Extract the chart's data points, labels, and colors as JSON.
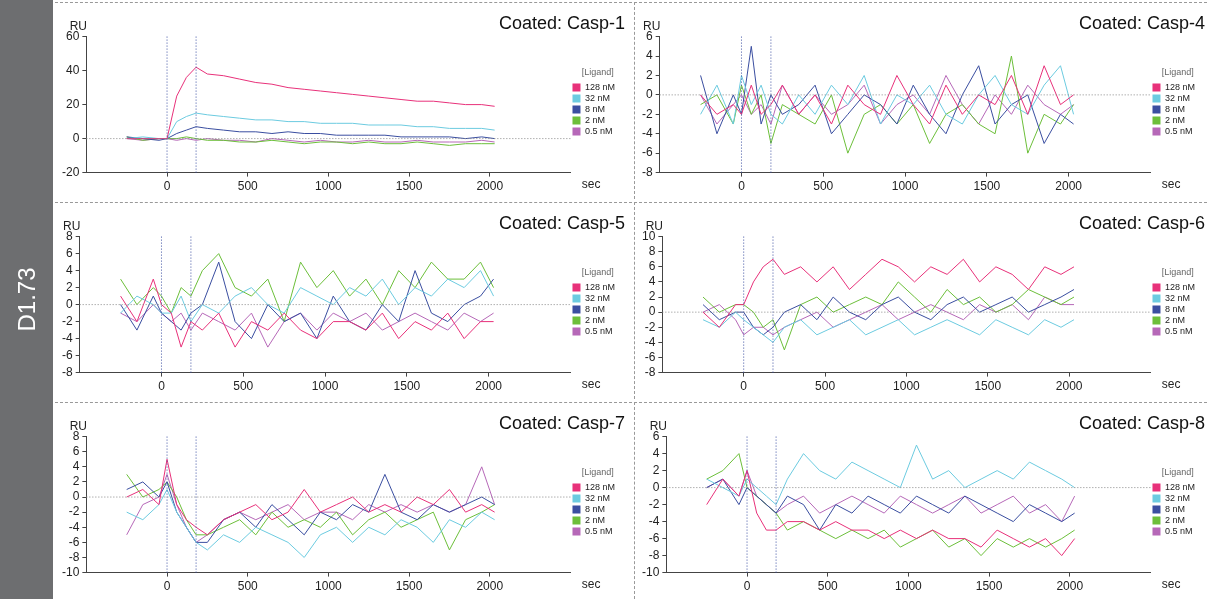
{
  "chart_data": [
    {
      "type": "line",
      "title": "Coated: Casp-1",
      "xlabel": "sec",
      "ylabel": "RU",
      "legend_title": "[Ligand]",
      "legend": "right",
      "marker": "none",
      "line_style": "solid",
      "grid": false,
      "annotations": [
        "D1.73"
      ],
      "xlim": [
        -500,
        2500
      ],
      "xticks": [
        0,
        500,
        1000,
        1500,
        2000
      ],
      "ylim": [
        -20,
        60
      ],
      "yticks": [
        -20,
        0,
        20,
        40,
        60
      ],
      "ref_lines": [
        {
          "axis": "x",
          "value": 0,
          "color": "#3a4ea0",
          "line_style": "dotted"
        },
        {
          "axis": "x",
          "value": 180,
          "color": "#3a4ea0",
          "line_style": "dotted"
        },
        {
          "axis": "y",
          "value": 0,
          "color": "#888888",
          "line_style": "dotted"
        }
      ],
      "x": [
        -250,
        -150,
        -50,
        0,
        60,
        120,
        180,
        250,
        350,
        450,
        550,
        650,
        750,
        850,
        950,
        1050,
        1150,
        1250,
        1350,
        1450,
        1550,
        1650,
        1750,
        1850,
        1950,
        2030
      ],
      "series": [
        {
          "name": "128 nM",
          "color": "#e8317a",
          "values": [
            0,
            0,
            0,
            0,
            25,
            36,
            42,
            38,
            37,
            35,
            33,
            32,
            30,
            29,
            28,
            27,
            26,
            25,
            24,
            23,
            22,
            22,
            21,
            20,
            20,
            19
          ]
        },
        {
          "name": "32 nM",
          "color": "#6ccbe0",
          "values": [
            0,
            1,
            0,
            0,
            10,
            13,
            15,
            14,
            13,
            12,
            11,
            11,
            10,
            10,
            9,
            9,
            9,
            8,
            8,
            8,
            7,
            7,
            6,
            6,
            6,
            5
          ]
        },
        {
          "name": "8 nM",
          "color": "#3a4ea0",
          "values": [
            1,
            0,
            -1,
            0,
            3,
            5,
            7,
            6,
            5,
            4,
            4,
            3,
            4,
            3,
            3,
            2,
            2,
            2,
            2,
            1,
            1,
            1,
            1,
            0,
            1,
            0
          ]
        },
        {
          "name": "2 nM",
          "color": "#6cbf3a",
          "values": [
            1,
            -1,
            0,
            0,
            0,
            1,
            0,
            -1,
            -1,
            -2,
            -2,
            -1,
            -2,
            -3,
            -2,
            -2,
            -3,
            -2,
            -3,
            -3,
            -2,
            -3,
            -4,
            -3,
            -3,
            -3
          ]
        },
        {
          "name": "0.5 nM",
          "color": "#b668b8",
          "values": [
            0,
            -1,
            0,
            0,
            -1,
            0,
            -1,
            0,
            -1,
            -1,
            -2,
            0,
            -1,
            -2,
            -1,
            -2,
            -2,
            -1,
            -2,
            -2,
            -1,
            -2,
            -2,
            -2,
            -1,
            -2
          ]
        }
      ]
    },
    {
      "type": "line",
      "title": "Coated: Casp-4",
      "xlabel": "sec",
      "ylabel": "RU",
      "legend_title": "[Ligand]",
      "legend": "right",
      "marker": "none",
      "line_style": "solid",
      "grid": false,
      "xlim": [
        -500,
        2500
      ],
      "xticks": [
        0,
        500,
        1000,
        1500,
        2000
      ],
      "ylim": [
        -8,
        6
      ],
      "yticks": [
        -8,
        -6,
        -4,
        -2,
        0,
        2,
        4,
        6
      ],
      "ref_lines": [
        {
          "axis": "x",
          "value": 0,
          "color": "#3a4ea0",
          "line_style": "dotted"
        },
        {
          "axis": "x",
          "value": 180,
          "color": "#3a4ea0",
          "line_style": "dotted"
        },
        {
          "axis": "y",
          "value": 0,
          "color": "#888888",
          "line_style": "dotted"
        }
      ],
      "x": [
        -250,
        -150,
        -50,
        0,
        60,
        120,
        180,
        250,
        350,
        450,
        550,
        650,
        750,
        850,
        950,
        1050,
        1150,
        1250,
        1350,
        1450,
        1550,
        1650,
        1750,
        1850,
        1950,
        2030
      ],
      "series": [
        {
          "name": "128 nM",
          "color": "#e8317a",
          "values": [
            0,
            -2,
            -1,
            -2,
            1,
            -2,
            -1,
            1,
            -2,
            0,
            -3,
            1,
            -1,
            -2,
            2,
            -1,
            -3,
            1,
            -2,
            0,
            -1,
            2,
            -2,
            3,
            -1,
            0
          ]
        },
        {
          "name": "32 nM",
          "color": "#6ccbe0",
          "values": [
            -2,
            1,
            -3,
            2,
            -1,
            1,
            -2,
            -3,
            0,
            -2,
            1,
            -1,
            2,
            -3,
            0,
            -1,
            1,
            -2,
            -3,
            0,
            2,
            -1,
            -2,
            1,
            3,
            -2
          ]
        },
        {
          "name": "8 nM",
          "color": "#3a4ea0",
          "values": [
            2,
            -4,
            0,
            -2,
            5,
            -3,
            0,
            -2,
            -1,
            1,
            -4,
            -2,
            0,
            -1,
            -3,
            1,
            -2,
            -4,
            0,
            3,
            -3,
            -1,
            0,
            -5,
            -2,
            -3
          ]
        },
        {
          "name": "2 nM",
          "color": "#6cbf3a",
          "values": [
            -1,
            0,
            -3,
            1,
            -2,
            0,
            -5,
            -1,
            -2,
            -3,
            0,
            -6,
            -2,
            -1,
            -3,
            -1,
            -5,
            -2,
            -1,
            -3,
            -4,
            4,
            -6,
            -2,
            -3,
            -1
          ]
        },
        {
          "name": "0.5 nM",
          "color": "#b668b8",
          "values": [
            0,
            -3,
            -1,
            0,
            -2,
            -1,
            -3,
            1,
            -2,
            0,
            -2,
            -1,
            1,
            -3,
            -1,
            0,
            -2,
            2,
            -1,
            -3,
            0,
            -2,
            1,
            -1,
            -2,
            -1
          ]
        }
      ]
    },
    {
      "type": "line",
      "title": "Coated: Casp-5",
      "xlabel": "sec",
      "ylabel": "RU",
      "legend_title": "[Ligand]",
      "legend": "right",
      "marker": "none",
      "line_style": "solid",
      "grid": false,
      "xlim": [
        -500,
        2500
      ],
      "xticks": [
        0,
        500,
        1000,
        1500,
        2000
      ],
      "ylim": [
        -8,
        8
      ],
      "yticks": [
        -8,
        -6,
        -4,
        -2,
        0,
        2,
        4,
        6,
        8
      ],
      "ref_lines": [
        {
          "axis": "x",
          "value": 0,
          "color": "#3a4ea0",
          "line_style": "dotted"
        },
        {
          "axis": "x",
          "value": 180,
          "color": "#3a4ea0",
          "line_style": "dotted"
        },
        {
          "axis": "y",
          "value": 0,
          "color": "#888888",
          "line_style": "dotted"
        }
      ],
      "x": [
        -250,
        -150,
        -50,
        0,
        60,
        120,
        180,
        250,
        350,
        450,
        550,
        650,
        750,
        850,
        950,
        1050,
        1150,
        1250,
        1350,
        1450,
        1550,
        1650,
        1750,
        1850,
        1950,
        2030
      ],
      "series": [
        {
          "name": "128 nM",
          "color": "#e8317a",
          "values": [
            1,
            -2,
            3,
            0,
            -1,
            -5,
            -2,
            -3,
            -1,
            -5,
            -2,
            -3,
            -1,
            -3,
            -4,
            -2,
            -2,
            -3,
            -1,
            -4,
            -2,
            -3,
            -1,
            -4,
            -2,
            -2
          ]
        },
        {
          "name": "32 nM",
          "color": "#6ccbe0",
          "values": [
            -1,
            1,
            0,
            -1,
            -1,
            1,
            -2,
            0,
            -1,
            1,
            2,
            0,
            -1,
            2,
            1,
            0,
            2,
            1,
            3,
            0,
            2,
            1,
            3,
            2,
            4,
            1
          ]
        },
        {
          "name": "8 nM",
          "color": "#3a4ea0",
          "values": [
            0,
            -3,
            1,
            -1,
            -2,
            -3,
            -1,
            0,
            5,
            -2,
            -4,
            0,
            -2,
            -1,
            -4,
            1,
            -2,
            -3,
            0,
            -2,
            4,
            -1,
            -2,
            0,
            1,
            3
          ]
        },
        {
          "name": "2 nM",
          "color": "#6cbf3a",
          "values": [
            3,
            0,
            2,
            1,
            -1,
            2,
            1,
            4,
            6,
            2,
            1,
            3,
            -2,
            5,
            2,
            4,
            1,
            3,
            0,
            4,
            2,
            5,
            3,
            3,
            5,
            2
          ]
        },
        {
          "name": "0.5 nM",
          "color": "#b668b8",
          "values": [
            -1,
            -2,
            0,
            -1,
            -2,
            -1,
            -3,
            -1,
            -2,
            -3,
            -1,
            -5,
            -2,
            -1,
            -3,
            -1,
            -2,
            -1,
            -3,
            -2,
            -1,
            -2,
            -3,
            -1,
            -2,
            -1
          ]
        }
      ]
    },
    {
      "type": "line",
      "title": "Coated: Casp-6",
      "xlabel": "sec",
      "ylabel": "RU",
      "legend_title": "[Ligand]",
      "legend": "right",
      "marker": "none",
      "line_style": "solid",
      "grid": false,
      "xlim": [
        -500,
        2500
      ],
      "xticks": [
        0,
        500,
        1000,
        1500,
        2000
      ],
      "ylim": [
        -8,
        10
      ],
      "yticks": [
        -8,
        -6,
        -4,
        -2,
        0,
        2,
        4,
        6,
        8,
        10
      ],
      "ref_lines": [
        {
          "axis": "x",
          "value": 0,
          "color": "#3a4ea0",
          "line_style": "dotted"
        },
        {
          "axis": "x",
          "value": 180,
          "color": "#3a4ea0",
          "line_style": "dotted"
        },
        {
          "axis": "y",
          "value": 0,
          "color": "#888888",
          "line_style": "dotted"
        }
      ],
      "x": [
        -250,
        -150,
        -50,
        0,
        60,
        120,
        180,
        250,
        350,
        450,
        550,
        650,
        750,
        850,
        950,
        1050,
        1150,
        1250,
        1350,
        1450,
        1550,
        1650,
        1750,
        1850,
        1950,
        2030
      ],
      "series": [
        {
          "name": "128 nM",
          "color": "#e8317a",
          "values": [
            0,
            -2,
            1,
            1,
            4,
            6,
            7,
            5,
            6,
            4,
            6,
            3,
            5,
            7,
            6,
            4,
            6,
            5,
            7,
            4,
            6,
            5,
            3,
            6,
            5,
            6
          ]
        },
        {
          "name": "32 nM",
          "color": "#6ccbe0",
          "values": [
            -1,
            -2,
            0,
            -1,
            -2,
            -3,
            -4,
            -2,
            -1,
            -3,
            -2,
            -1,
            -3,
            -2,
            -1,
            -3,
            -2,
            -1,
            -2,
            -3,
            -1,
            -2,
            -3,
            -1,
            -2,
            -1
          ]
        },
        {
          "name": "8 nM",
          "color": "#3a4ea0",
          "values": [
            1,
            -1,
            0,
            0,
            -2,
            -3,
            -2,
            0,
            1,
            -1,
            2,
            0,
            -1,
            1,
            2,
            0,
            -1,
            1,
            2,
            0,
            1,
            2,
            0,
            1,
            2,
            3
          ]
        },
        {
          "name": "2 nM",
          "color": "#6cbf3a",
          "values": [
            2,
            0,
            1,
            1,
            0,
            -2,
            -1,
            -5,
            1,
            2,
            0,
            1,
            2,
            1,
            4,
            2,
            0,
            3,
            1,
            2,
            0,
            1,
            3,
            2,
            1,
            2
          ]
        },
        {
          "name": "0.5 nM",
          "color": "#b668b8",
          "values": [
            0,
            1,
            -1,
            -3,
            -2,
            -2,
            -3,
            -2,
            -1,
            0,
            -2,
            -1,
            0,
            1,
            -1,
            0,
            1,
            0,
            -1,
            1,
            0,
            1,
            -1,
            2,
            1,
            1
          ]
        }
      ]
    },
    {
      "type": "line",
      "title": "Coated: Casp-7",
      "xlabel": "sec",
      "ylabel": "RU",
      "legend_title": "[Ligand]",
      "legend": "right",
      "marker": "none",
      "line_style": "solid",
      "grid": false,
      "xlim": [
        -500,
        2500
      ],
      "xticks": [
        0,
        500,
        1000,
        1500,
        2000
      ],
      "ylim": [
        -10,
        8
      ],
      "yticks": [
        -10,
        -8,
        -6,
        -4,
        -2,
        0,
        2,
        4,
        6,
        8
      ],
      "ref_lines": [
        {
          "axis": "x",
          "value": 0,
          "color": "#3a4ea0",
          "line_style": "dotted"
        },
        {
          "axis": "x",
          "value": 180,
          "color": "#3a4ea0",
          "line_style": "dotted"
        },
        {
          "axis": "y",
          "value": 0,
          "color": "#888888",
          "line_style": "dotted"
        }
      ],
      "x": [
        -250,
        -150,
        -50,
        0,
        60,
        120,
        180,
        250,
        350,
        450,
        550,
        650,
        750,
        850,
        950,
        1050,
        1150,
        1250,
        1350,
        1450,
        1550,
        1650,
        1750,
        1850,
        1950,
        2030
      ],
      "series": [
        {
          "name": "128 nM",
          "color": "#e8317a",
          "values": [
            0,
            1,
            -1,
            5,
            -1,
            -3,
            -4,
            -5,
            -3,
            -2,
            -1,
            -3,
            -2,
            1,
            -2,
            -1,
            0,
            -2,
            -1,
            -2,
            0,
            -1,
            1,
            -2,
            -1,
            -2
          ]
        },
        {
          "name": "32 nM",
          "color": "#6ccbe0",
          "values": [
            -2,
            -3,
            -1,
            1,
            -2,
            -4,
            -6,
            -7,
            -5,
            -6,
            -4,
            -5,
            -6,
            -8,
            -5,
            -4,
            -6,
            -4,
            -5,
            -3,
            -4,
            -6,
            -3,
            -4,
            -2,
            -3
          ]
        },
        {
          "name": "8 nM",
          "color": "#3a4ea0",
          "values": [
            1,
            2,
            0,
            2,
            -2,
            -4,
            -6,
            -6,
            -3,
            -2,
            -4,
            -1,
            -3,
            -5,
            -2,
            -3,
            -1,
            -2,
            3,
            -2,
            -3,
            -1,
            -2,
            -1,
            0,
            -1
          ]
        },
        {
          "name": "2 nM",
          "color": "#6cbf3a",
          "values": [
            3,
            0,
            1,
            2,
            0,
            -3,
            -5,
            -5,
            -4,
            -3,
            -5,
            -2,
            -4,
            -3,
            -4,
            -2,
            -5,
            -3,
            -2,
            -4,
            -3,
            -2,
            -7,
            -3,
            -2,
            -1
          ]
        },
        {
          "name": "0.5 nM",
          "color": "#b668b8",
          "values": [
            -5,
            -1,
            0,
            3,
            -1,
            -4,
            -6,
            -5,
            -3,
            -2,
            -3,
            -2,
            -1,
            -3,
            -2,
            -2,
            -3,
            -1,
            -2,
            -1,
            -2,
            -1,
            -2,
            -1,
            4,
            -1
          ]
        }
      ]
    },
    {
      "type": "line",
      "title": "Coated: Casp-8",
      "xlabel": "sec",
      "ylabel": "RU",
      "legend_title": "[Ligand]",
      "legend": "right",
      "marker": "none",
      "line_style": "solid",
      "grid": false,
      "xlim": [
        -500,
        2500
      ],
      "xticks": [
        0,
        500,
        1000,
        1500,
        2000
      ],
      "ylim": [
        -10,
        6
      ],
      "yticks": [
        -10,
        -8,
        -6,
        -4,
        -2,
        0,
        2,
        4,
        6
      ],
      "ref_lines": [
        {
          "axis": "x",
          "value": 0,
          "color": "#3a4ea0",
          "line_style": "dotted"
        },
        {
          "axis": "x",
          "value": 180,
          "color": "#3a4ea0",
          "line_style": "dotted"
        },
        {
          "axis": "y",
          "value": 0,
          "color": "#888888",
          "line_style": "dotted"
        }
      ],
      "x": [
        -250,
        -150,
        -50,
        0,
        60,
        120,
        180,
        250,
        350,
        450,
        550,
        650,
        750,
        850,
        950,
        1050,
        1150,
        1250,
        1350,
        1450,
        1550,
        1650,
        1750,
        1850,
        1950,
        2030
      ],
      "series": [
        {
          "name": "128 nM",
          "color": "#e8317a",
          "values": [
            -2,
            1,
            -1,
            2,
            -3,
            -5,
            -5,
            -4,
            -4,
            -5,
            -4,
            -5,
            -5,
            -6,
            -5,
            -6,
            -5,
            -6,
            -6,
            -7,
            -5,
            -6,
            -7,
            -6,
            -8,
            -6
          ]
        },
        {
          "name": "32 nM",
          "color": "#6ccbe0",
          "values": [
            1,
            0,
            -1,
            1,
            0,
            -1,
            -2,
            1,
            4,
            2,
            1,
            3,
            2,
            1,
            0,
            5,
            1,
            2,
            0,
            1,
            2,
            1,
            3,
            2,
            1,
            0
          ]
        },
        {
          "name": "8 nM",
          "color": "#3a4ea0",
          "values": [
            0,
            1,
            -2,
            0,
            -1,
            -2,
            -3,
            -1,
            -2,
            -5,
            -2,
            -3,
            -1,
            -2,
            -3,
            -1,
            -2,
            -3,
            -1,
            -2,
            -3,
            -4,
            -2,
            -3,
            -4,
            -3
          ]
        },
        {
          "name": "2 nM",
          "color": "#6cbf3a",
          "values": [
            1,
            2,
            4,
            0,
            -1,
            -2,
            -3,
            -5,
            -4,
            -5,
            -6,
            -5,
            -6,
            -5,
            -7,
            -6,
            -5,
            -7,
            -6,
            -8,
            -6,
            -7,
            -6,
            -7,
            -6,
            -5
          ]
        },
        {
          "name": "0.5 nM",
          "color": "#b668b8",
          "values": [
            0,
            1,
            -1,
            2,
            -1,
            -2,
            -3,
            -2,
            -1,
            -3,
            -2,
            -1,
            -2,
            -3,
            -1,
            -2,
            -3,
            -2,
            -1,
            -3,
            -2,
            -1,
            -3,
            -2,
            -4,
            -1
          ]
        }
      ]
    }
  ]
}
